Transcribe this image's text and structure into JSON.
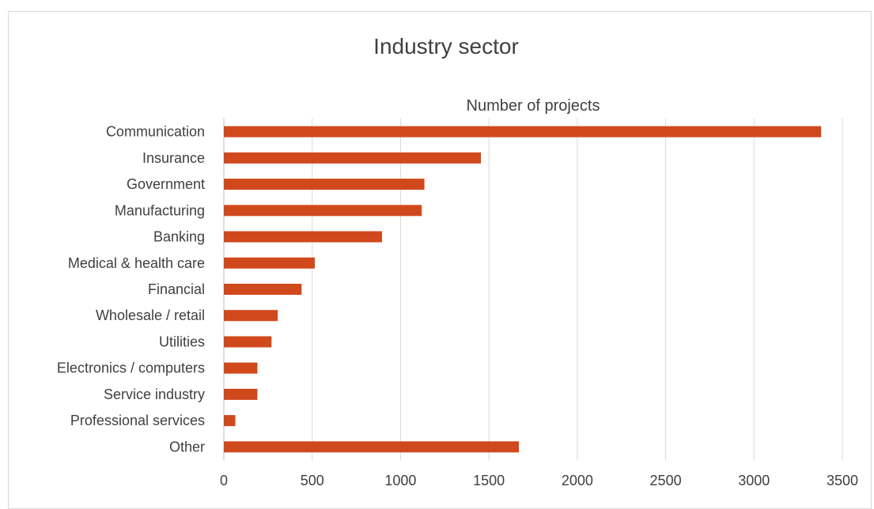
{
  "chart_data": {
    "type": "bar",
    "orientation": "horizontal",
    "title": "Industry sector",
    "subtitle": "Number of projects",
    "categories": [
      "Communication",
      "Insurance",
      "Government",
      "Manufacturing",
      "Banking",
      "Medical & health care",
      "Financial",
      "Wholesale / retail",
      "Utilities",
      "Electronics / computers",
      "Service industry",
      "Professional services",
      "Other"
    ],
    "values": [
      3380,
      1455,
      1135,
      1120,
      895,
      515,
      440,
      305,
      270,
      190,
      190,
      65,
      1670
    ],
    "xlim": [
      0,
      3500
    ],
    "xticks": [
      "0",
      "500",
      "1000",
      "1500",
      "2000",
      "2500",
      "3000",
      "3500"
    ],
    "xtick_values": [
      0,
      500,
      1000,
      1500,
      2000,
      2500,
      3000,
      3500
    ],
    "grid": "vertical",
    "bar_color": "#d0491c"
  }
}
